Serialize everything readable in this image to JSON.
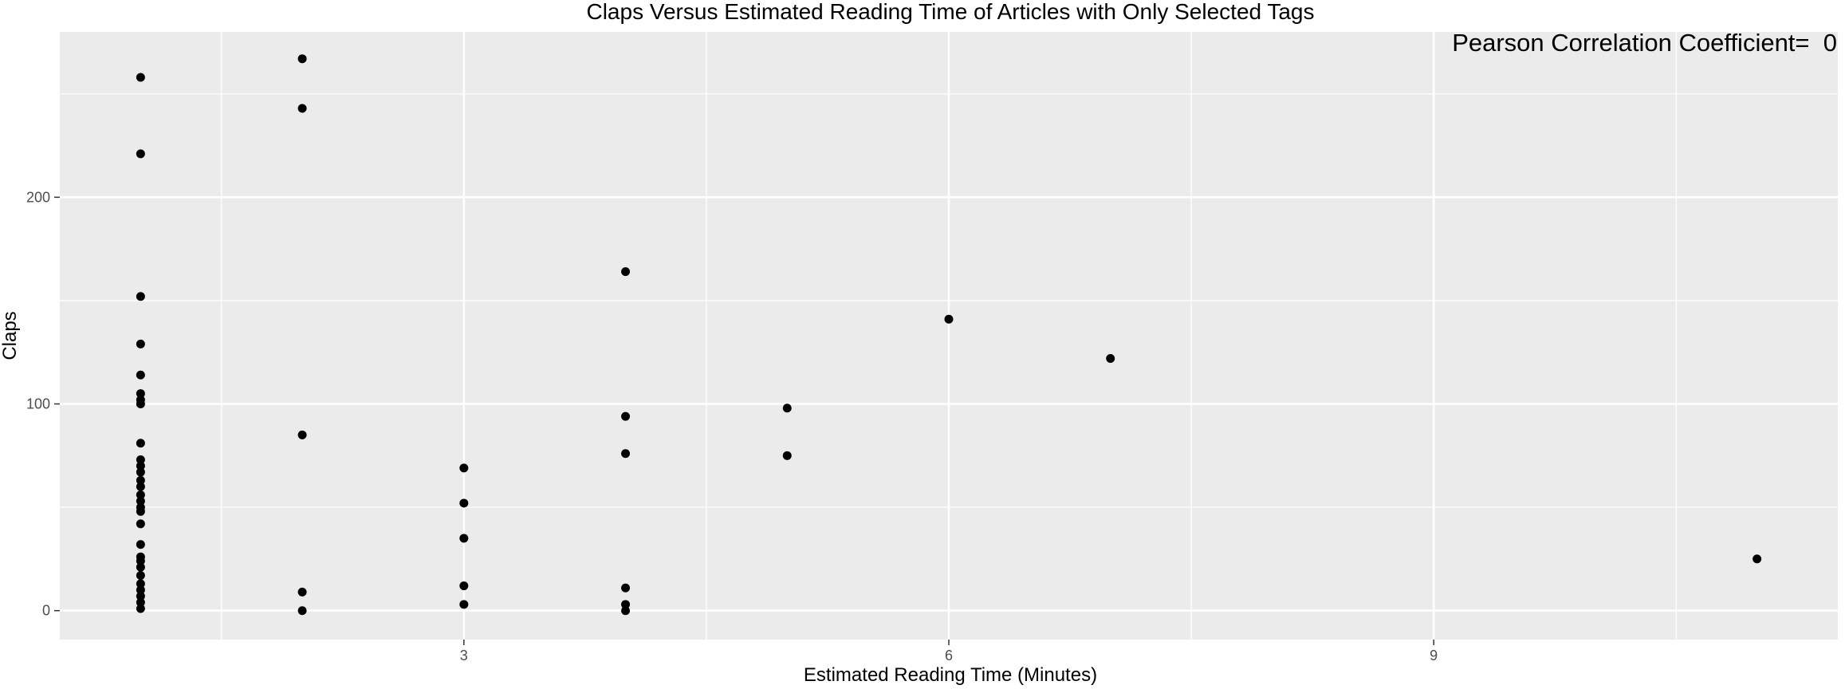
{
  "chart_data": {
    "type": "scatter",
    "title": "Claps Versus Estimated Reading Time of Articles with Only Selected Tags",
    "xlabel": "Estimated Reading Time (Minutes)",
    "ylabel": "Claps",
    "xlim": [
      0.5,
      11.5
    ],
    "ylim": [
      -14,
      280
    ],
    "x_ticks": [
      3,
      6,
      9
    ],
    "x_minor_ticks": [
      1.5,
      4.5,
      7.5,
      10.5
    ],
    "y_ticks": [
      0,
      100,
      200
    ],
    "y_minor_ticks": [
      50,
      150,
      250
    ],
    "grid": true,
    "legend": "none",
    "annotation": "Pearson Correlation Coefficient=  0",
    "annotation_position": "top-right",
    "colors": {
      "panel": "#ebebeb",
      "grid": "#ffffff",
      "point": "#000000"
    },
    "points": [
      {
        "x": 1,
        "y": 258
      },
      {
        "x": 1,
        "y": 221
      },
      {
        "x": 1,
        "y": 152
      },
      {
        "x": 1,
        "y": 129
      },
      {
        "x": 1,
        "y": 114
      },
      {
        "x": 1,
        "y": 105
      },
      {
        "x": 1,
        "y": 102
      },
      {
        "x": 1,
        "y": 100
      },
      {
        "x": 1,
        "y": 81
      },
      {
        "x": 1,
        "y": 73
      },
      {
        "x": 1,
        "y": 70
      },
      {
        "x": 1,
        "y": 67
      },
      {
        "x": 1,
        "y": 63
      },
      {
        "x": 1,
        "y": 60
      },
      {
        "x": 1,
        "y": 56
      },
      {
        "x": 1,
        "y": 53
      },
      {
        "x": 1,
        "y": 50
      },
      {
        "x": 1,
        "y": 48
      },
      {
        "x": 1,
        "y": 42
      },
      {
        "x": 1,
        "y": 32
      },
      {
        "x": 1,
        "y": 26
      },
      {
        "x": 1,
        "y": 24
      },
      {
        "x": 1,
        "y": 21
      },
      {
        "x": 1,
        "y": 17
      },
      {
        "x": 1,
        "y": 13
      },
      {
        "x": 1,
        "y": 10
      },
      {
        "x": 1,
        "y": 7
      },
      {
        "x": 1,
        "y": 4
      },
      {
        "x": 1,
        "y": 1
      },
      {
        "x": 2,
        "y": 267
      },
      {
        "x": 2,
        "y": 243
      },
      {
        "x": 2,
        "y": 85
      },
      {
        "x": 2,
        "y": 9
      },
      {
        "x": 2,
        "y": 0
      },
      {
        "x": 3,
        "y": 69
      },
      {
        "x": 3,
        "y": 52
      },
      {
        "x": 3,
        "y": 35
      },
      {
        "x": 3,
        "y": 12
      },
      {
        "x": 3,
        "y": 3
      },
      {
        "x": 4,
        "y": 164
      },
      {
        "x": 4,
        "y": 94
      },
      {
        "x": 4,
        "y": 76
      },
      {
        "x": 4,
        "y": 11
      },
      {
        "x": 4,
        "y": 3
      },
      {
        "x": 4,
        "y": 0
      },
      {
        "x": 5,
        "y": 98
      },
      {
        "x": 5,
        "y": 75
      },
      {
        "x": 6,
        "y": 141
      },
      {
        "x": 7,
        "y": 122
      },
      {
        "x": 11,
        "y": 25
      }
    ]
  }
}
